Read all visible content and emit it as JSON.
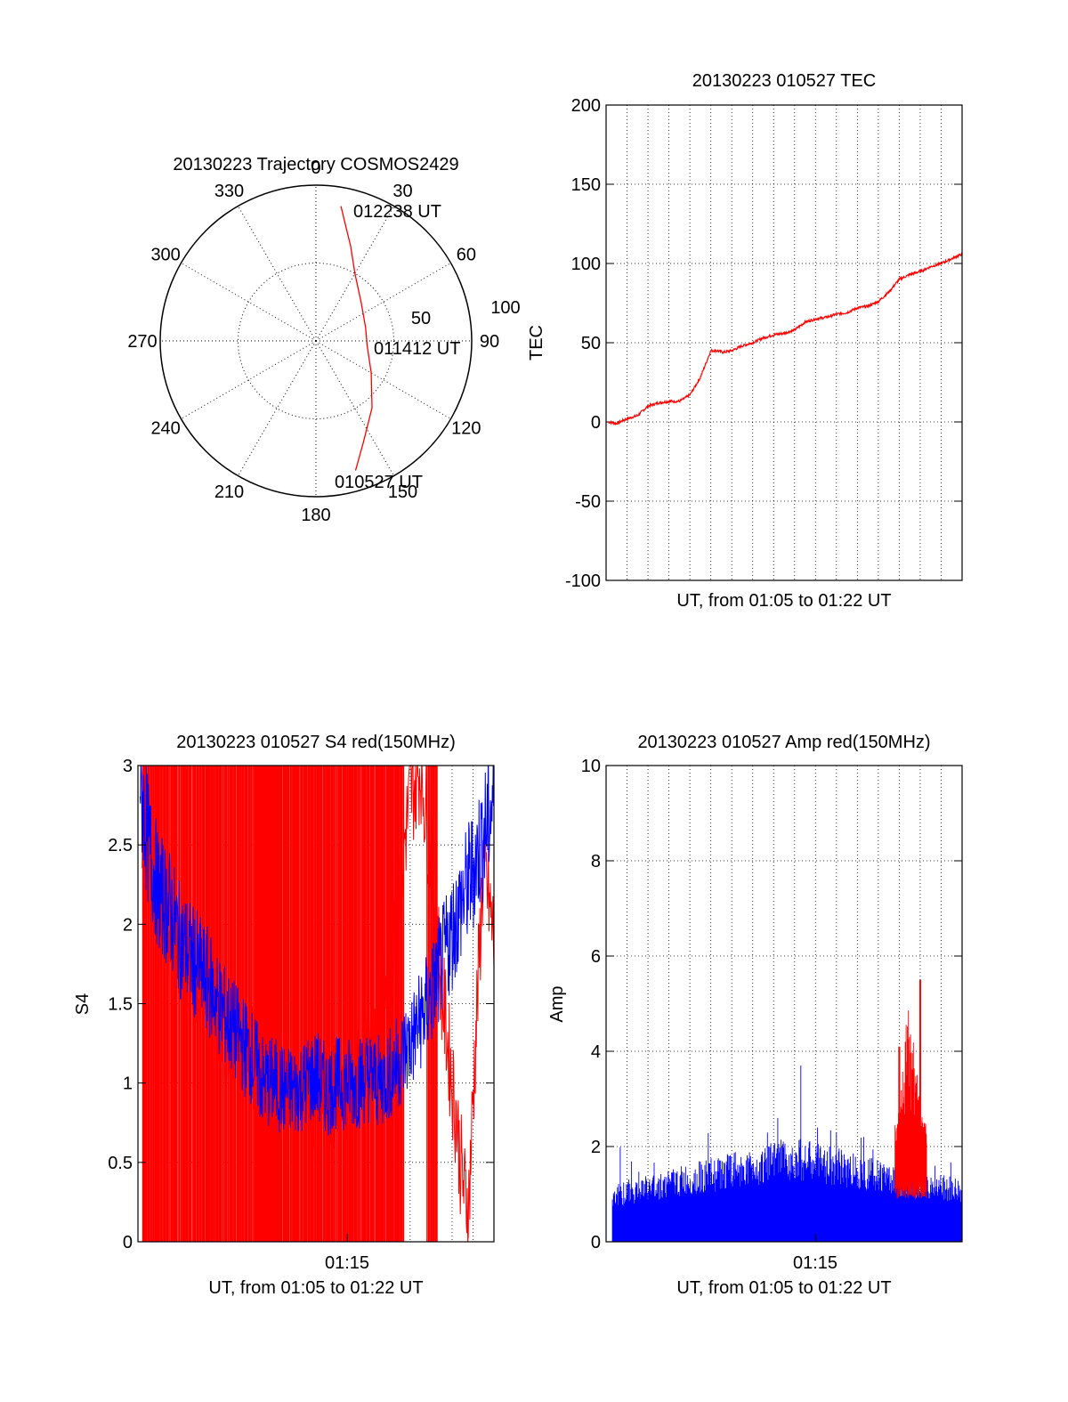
{
  "colors": {
    "red": "#ff0000",
    "blue": "#0000ff",
    "axis": "#000000",
    "grid": "#000000"
  },
  "chart_data": [
    {
      "id": "trajectory",
      "type": "polar",
      "title": "20130223 Trajectory COSMOS2429",
      "angle_labels": [
        "0",
        "30",
        "60",
        "90",
        "120",
        "150",
        "180",
        "210",
        "240",
        "270",
        "300",
        "330"
      ],
      "radial_labels": [
        "50",
        "100"
      ],
      "rlim": [
        0,
        100
      ],
      "grid": true,
      "series": [
        {
          "color": "#ff0000",
          "points": [
            [
              10.5,
              88
            ],
            [
              15,
              75
            ],
            [
              20,
              65
            ],
            [
              30,
              50
            ],
            [
              50,
              38
            ],
            [
              75,
              33
            ],
            [
              95,
              33
            ],
            [
              120,
              41
            ],
            [
              140,
              56
            ],
            [
              155,
              72
            ],
            [
              163,
              87
            ]
          ]
        }
      ],
      "annotations": [
        {
          "text": "012238 UT",
          "angle": 10.5,
          "r": 88
        },
        {
          "text": "011412 UT",
          "angle": 95,
          "r": 33
        },
        {
          "text": "010527 UT",
          "angle": 163,
          "r": 87
        }
      ]
    },
    {
      "id": "tec",
      "type": "line",
      "title": "20130223 010527 TEC",
      "xlabel": "UT, from 01:05 to 01:22 UT",
      "ylabel": "TEC",
      "xlim": [
        0,
        17
      ],
      "ylim": [
        -100,
        200
      ],
      "yticks": [
        "-100",
        "-50",
        "0",
        "50",
        "100",
        "150",
        "200"
      ],
      "xtick_labels": [],
      "grid": true,
      "series": [
        {
          "color": "#ff0000",
          "x": [
            0.1,
            0.5,
            1.0,
            1.5,
            2.0,
            2.5,
            3.0,
            3.5,
            4.0,
            4.5,
            5.0,
            5.3,
            5.6,
            6.0,
            6.5,
            7.0,
            7.5,
            8.0,
            8.5,
            9.0,
            9.5,
            10.0,
            10.5,
            11.0,
            11.5,
            12.0,
            12.5,
            13.0,
            13.5,
            14.0,
            14.5,
            15.0,
            15.5,
            16.0,
            16.5,
            17.0
          ],
          "y": [
            0,
            -1,
            2,
            4,
            10,
            12,
            13,
            13,
            17,
            28,
            45,
            45,
            44,
            45,
            48,
            50,
            53,
            55,
            56,
            58,
            63,
            65,
            66,
            68,
            69,
            72,
            73,
            76,
            82,
            90,
            93,
            95,
            98,
            100,
            103,
            106
          ]
        }
      ]
    },
    {
      "id": "s4",
      "type": "line",
      "title": "20130223 010527 S4 red(150MHz)",
      "xlabel": "UT, from 01:05 to 01:22 UT",
      "ylabel": "S4",
      "xlim": [
        0,
        17
      ],
      "ylim": [
        0,
        3
      ],
      "yticks": [
        "0",
        "0.5",
        "1",
        "1.5",
        "2",
        "2.5",
        "3"
      ],
      "xtick_labels": [
        "01:15"
      ],
      "xtick_positions": [
        10
      ],
      "grid": true,
      "series": [
        {
          "color": "#ff0000",
          "spike_ranges": [
            [
              0.2,
              12.7
            ],
            [
              13.8,
              14.3
            ]
          ],
          "x": [
            0.2,
            1.0,
            2.0,
            3.0,
            4.0,
            5.0,
            6.0,
            7.0,
            8.0,
            9.0,
            10.0,
            11.0,
            12.0,
            12.5,
            13.0,
            13.5,
            14.0,
            14.5,
            15.0,
            15.2,
            15.4,
            15.6,
            15.8,
            16.0,
            16.5,
            17.0
          ],
          "y": [
            2.6,
            2.1,
            1.8,
            1.6,
            1.4,
            1.2,
            1.1,
            1.0,
            0.9,
            0.9,
            1.0,
            1.1,
            1.6,
            2.3,
            2.8,
            3.0,
            2.4,
            1.6,
            1.0,
            0.8,
            0.5,
            0.3,
            0.25,
            0.9,
            2.4,
            1.9
          ]
        },
        {
          "color": "#0000ff",
          "x": [
            0.1,
            0.5,
            1.0,
            1.5,
            2.0,
            2.5,
            3.0,
            3.5,
            4.0,
            4.5,
            5.0,
            5.5,
            6.0,
            6.5,
            7.0,
            7.5,
            8.0,
            8.5,
            9.0,
            9.5,
            10.0,
            10.5,
            11.0,
            11.5,
            12.0,
            12.5,
            13.0,
            13.5,
            14.0,
            14.5,
            15.0,
            15.5,
            16.0,
            16.5,
            17.0
          ],
          "y": [
            2.9,
            2.5,
            2.2,
            2.1,
            1.9,
            1.8,
            1.7,
            1.6,
            1.45,
            1.35,
            1.25,
            1.15,
            1.0,
            1.0,
            0.95,
            0.95,
            1.0,
            1.05,
            0.95,
            1.0,
            1.0,
            1.0,
            1.05,
            1.0,
            1.05,
            1.15,
            1.25,
            1.4,
            1.55,
            1.75,
            1.95,
            2.15,
            2.35,
            2.55,
            2.8
          ]
        }
      ]
    },
    {
      "id": "amp",
      "type": "line",
      "title": "20130223 010527 Amp red(150MHz)",
      "xlabel": "UT, from 01:05 to 01:22 UT",
      "ylabel": "Amp",
      "xlim": [
        0,
        17
      ],
      "ylim": [
        0,
        10
      ],
      "yticks": [
        "0",
        "2",
        "4",
        "6",
        "8",
        "10"
      ],
      "xtick_labels": [
        "01:15"
      ],
      "xtick_positions": [
        10
      ],
      "grid": true,
      "series": [
        {
          "color": "#0000ff",
          "x_range": [
            0.3,
            17
          ],
          "base_level": 0.9,
          "noise_level": 1.3,
          "peak": 3.7
        },
        {
          "color": "#ff0000",
          "x_range": [
            13.8,
            15.3
          ],
          "base_level": 1.5,
          "peak": 5.5
        }
      ]
    }
  ]
}
